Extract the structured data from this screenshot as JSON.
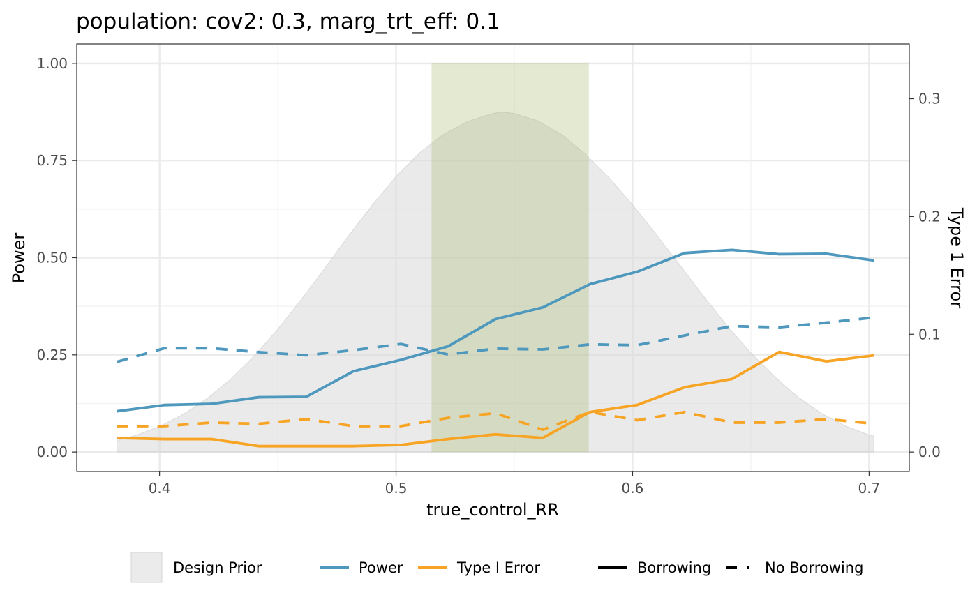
{
  "chart_data": {
    "type": "line",
    "title": "population: cov2: 0.3, marg_trt_eff: 0.1",
    "xlabel": "true_control_RR",
    "ylabel": "Power",
    "ylabel_right": "Type 1 Error",
    "xlim": [
      0.365,
      0.717
    ],
    "ylim": [
      -0.05,
      1.05
    ],
    "ylim_right": [
      -0.0165,
      0.3465
    ],
    "x_ticks": [
      {
        "v": 0.4,
        "label": "0.4"
      },
      {
        "v": 0.5,
        "label": "0.5"
      },
      {
        "v": 0.6,
        "label": "0.6"
      },
      {
        "v": 0.7,
        "label": "0.7"
      }
    ],
    "y_ticks": [
      {
        "v": 0.0,
        "label": "0.00"
      },
      {
        "v": 0.25,
        "label": "0.25"
      },
      {
        "v": 0.5,
        "label": "0.50"
      },
      {
        "v": 0.75,
        "label": "0.75"
      },
      {
        "v": 1.0,
        "label": "1.00"
      }
    ],
    "y_right_ticks": [
      {
        "v": 0.0,
        "label": "0.0"
      },
      {
        "v": 0.1,
        "label": "0.1"
      },
      {
        "v": 0.2,
        "label": "0.2"
      },
      {
        "v": 0.3,
        "label": "0.3"
      }
    ],
    "grid": true,
    "shaded_interval": {
      "x": [
        0.515,
        0.5815
      ],
      "y": [
        0,
        1
      ],
      "color": "#a4b96a"
    },
    "design_prior": {
      "label": "Design Prior",
      "color": "#d9d9d9",
      "x": [
        0.382,
        0.39,
        0.4,
        0.41,
        0.42,
        0.43,
        0.44,
        0.45,
        0.46,
        0.47,
        0.48,
        0.49,
        0.5,
        0.51,
        0.52,
        0.53,
        0.54,
        0.545,
        0.55,
        0.56,
        0.57,
        0.58,
        0.59,
        0.6,
        0.61,
        0.62,
        0.63,
        0.64,
        0.65,
        0.66,
        0.67,
        0.68,
        0.69,
        0.7,
        0.702
      ],
      "y": [
        0.03,
        0.043,
        0.066,
        0.097,
        0.137,
        0.187,
        0.247,
        0.316,
        0.393,
        0.474,
        0.557,
        0.636,
        0.709,
        0.77,
        0.817,
        0.85,
        0.87,
        0.875,
        0.871,
        0.852,
        0.817,
        0.767,
        0.706,
        0.636,
        0.56,
        0.481,
        0.401,
        0.325,
        0.255,
        0.194,
        0.141,
        0.099,
        0.067,
        0.044,
        0.041
      ]
    },
    "x": [
      0.382,
      0.402,
      0.422,
      0.442,
      0.462,
      0.482,
      0.502,
      0.522,
      0.542,
      0.562,
      0.582,
      0.602,
      0.622,
      0.642,
      0.662,
      0.682,
      0.702
    ],
    "series": [
      {
        "name": "Power",
        "borrowing": "Borrowing",
        "axis": "left",
        "color": "#4e97bd",
        "dash": "solid",
        "values": [
          0.105,
          0.121,
          0.124,
          0.141,
          0.142,
          0.208,
          0.237,
          0.272,
          0.342,
          0.372,
          0.432,
          0.464,
          0.512,
          0.52,
          0.509,
          0.51,
          0.493
        ]
      },
      {
        "name": "Power",
        "borrowing": "No Borrowing",
        "axis": "left",
        "color": "#4e97bd",
        "dash": "dashed",
        "values": [
          0.232,
          0.267,
          0.267,
          0.257,
          0.249,
          0.262,
          0.278,
          0.251,
          0.266,
          0.264,
          0.277,
          0.275,
          0.3,
          0.324,
          0.321,
          0.333,
          0.346
        ]
      },
      {
        "name": "Type I Error",
        "borrowing": "Borrowing",
        "axis": "right",
        "color": "#f7a424",
        "dash": "solid",
        "values": [
          0.012,
          0.011,
          0.011,
          0.005,
          0.005,
          0.005,
          0.006,
          0.011,
          0.015,
          0.012,
          0.034,
          0.04,
          0.055,
          0.062,
          0.085,
          0.077,
          0.082
        ]
      },
      {
        "name": "Type I Error",
        "borrowing": "No Borrowing",
        "axis": "right",
        "color": "#f7a424",
        "dash": "dashed",
        "values": [
          0.022,
          0.022,
          0.025,
          0.024,
          0.028,
          0.022,
          0.022,
          0.029,
          0.033,
          0.019,
          0.034,
          0.027,
          0.034,
          0.025,
          0.025,
          0.028,
          0.024
        ]
      }
    ],
    "legend": {
      "position": "bottom",
      "fill_label": "Design Prior",
      "color_labels": [
        "Power",
        "Type I Error"
      ],
      "linetype_labels": [
        "Borrowing",
        "No Borrowing"
      ]
    }
  }
}
